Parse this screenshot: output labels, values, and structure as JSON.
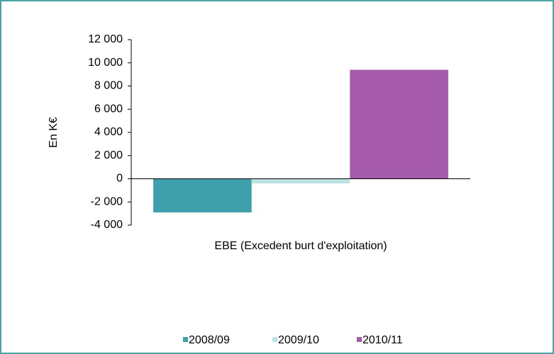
{
  "chart_data": {
    "type": "bar",
    "axis_label": "En K€",
    "categories": [
      "EBE (Excedent burt d'exploitation)"
    ],
    "series": [
      {
        "name": "2008/09",
        "color": "#3f9faa",
        "values": [
          -2900
        ]
      },
      {
        "name": "2009/10",
        "color": "#bde0e1",
        "values": [
          -400
        ]
      },
      {
        "name": "2010/11",
        "color": "#a65aaa",
        "values": [
          9400
        ]
      }
    ],
    "ylim": [
      -4000,
      12000
    ],
    "yticks": [
      {
        "value": -4000,
        "label": "-4 000"
      },
      {
        "value": -2000,
        "label": "-2 000"
      },
      0,
      {
        "value": 2000,
        "label": "2 000"
      },
      {
        "value": 4000,
        "label": "4 000"
      },
      {
        "value": 6000,
        "label": "6 000"
      },
      {
        "value": 8000,
        "label": "8 000"
      },
      {
        "value": 10000,
        "label": "10 000"
      },
      {
        "value": 12000,
        "label": "12 000"
      }
    ],
    "legend": "bottom"
  }
}
